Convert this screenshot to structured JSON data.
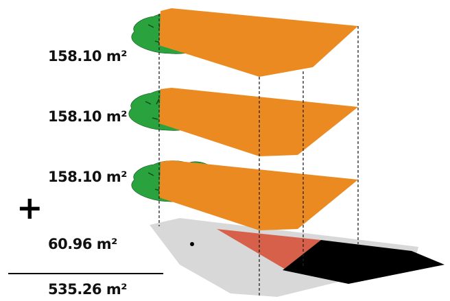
{
  "colors": {
    "floor_plate": "#ec8a22",
    "trees": "#2aa33e",
    "tree_stroke": "#0e4a16",
    "ground_site": "#d8d8d8",
    "ground_red": "#d6604a",
    "ground_black": "#000000",
    "guide_lines": "#222222",
    "text": "#111111"
  },
  "floors": [
    {
      "area": "158.10 m²"
    },
    {
      "area": "158.10 m²"
    },
    {
      "area": "158.10 m²"
    }
  ],
  "ground_area": "60.96 m²",
  "operator_symbol": "+",
  "total_area": "535.26 m²"
}
